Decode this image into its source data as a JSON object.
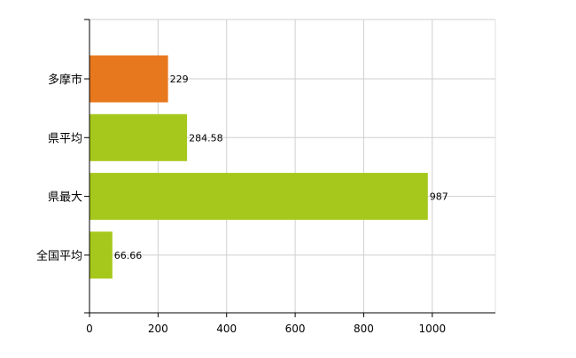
{
  "chart_data": {
    "type": "bar",
    "orientation": "horizontal",
    "title": "",
    "xlabel": "",
    "ylabel": "",
    "categories": [
      "多摩市",
      "県平均",
      "県最大",
      "全国平均"
    ],
    "values": [
      229,
      284.58,
      987,
      66.66
    ],
    "data_labels": [
      "229",
      "284.58",
      "987",
      "66.66"
    ],
    "bar_colors": [
      "#E8781E",
      "#A6C81C",
      "#A6C81C",
      "#A6C81C"
    ],
    "xlim": [
      0,
      1184
    ],
    "x_ticks": [
      0,
      200,
      400,
      600,
      800,
      1000
    ],
    "grid": true,
    "legend": "none"
  }
}
